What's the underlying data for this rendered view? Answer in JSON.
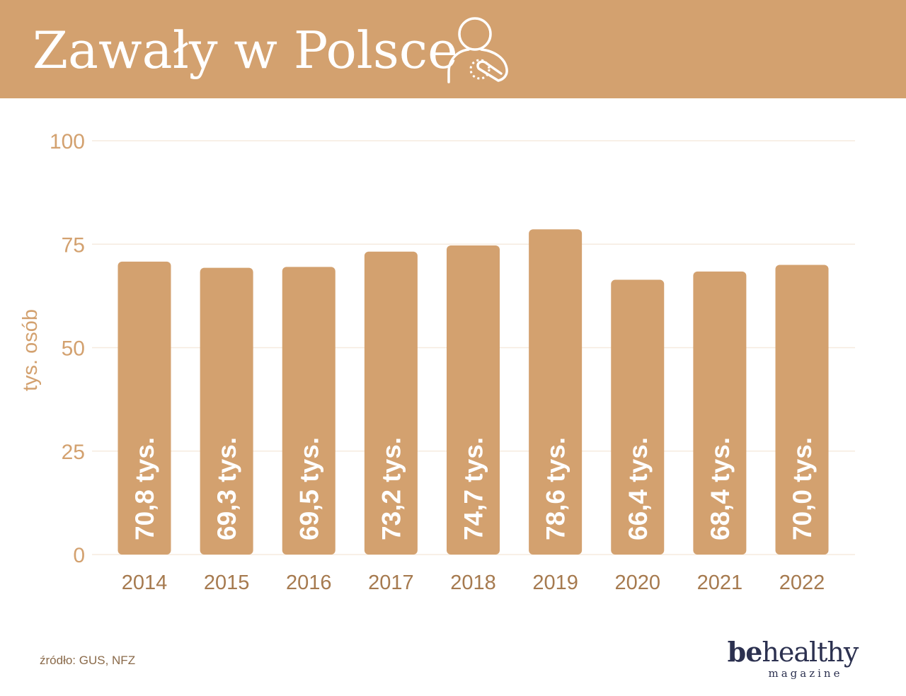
{
  "header": {
    "title": "Zawały w Polsce",
    "icon": "person-heart-icon",
    "background": "#d3a16f"
  },
  "chart_data": {
    "type": "bar",
    "title": "Zawały w Polsce",
    "categories": [
      "2014",
      "2015",
      "2016",
      "2017",
      "2018",
      "2019",
      "2020",
      "2021",
      "2022"
    ],
    "values": [
      70.8,
      69.3,
      69.5,
      73.2,
      74.7,
      78.6,
      66.4,
      68.4,
      70.0
    ],
    "data_labels": [
      "70,8 tys.",
      "69,3 tys.",
      "69,5 tys.",
      "73,2 tys.",
      "74,7 tys.",
      "78,6 tys.",
      "66,4 tys.",
      "68,4 tys.",
      "70,0 tys."
    ],
    "xlabel": "",
    "ylabel": "tys. osób",
    "ylim": [
      0,
      100
    ],
    "yticks": [
      "0",
      "25",
      "50",
      "75",
      "100"
    ],
    "grid": true,
    "legend": "none",
    "bar_color": "#d3a16f",
    "label_color": "#ffffff",
    "tick_color": "#d3a16f",
    "category_color": "#a67a4f"
  },
  "footer": {
    "source": "źródło: GUS, NFZ",
    "logo_bold": "be",
    "logo_rest": "healthy",
    "logo_sub": "magazine"
  }
}
